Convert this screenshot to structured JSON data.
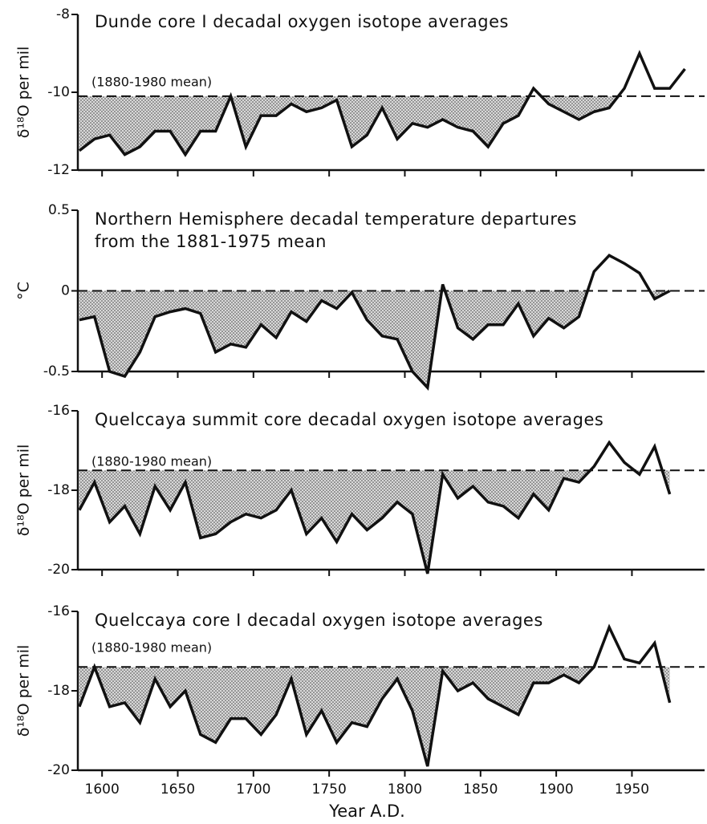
{
  "chart_data": [
    {
      "type": "line",
      "title": "Dunde core I decadal oxygen isotope averages",
      "ylabel": "δ¹⁸O per mil",
      "ylim": [
        -12,
        -8
      ],
      "yticks": [
        -12,
        -10,
        -8
      ],
      "xlim": [
        1584,
        1998
      ],
      "mean": -10.1,
      "mean_label": "(1880-1980 mean)",
      "x": [
        1585,
        1595,
        1605,
        1615,
        1625,
        1635,
        1645,
        1655,
        1665,
        1675,
        1685,
        1695,
        1705,
        1715,
        1725,
        1735,
        1745,
        1755,
        1765,
        1775,
        1785,
        1795,
        1805,
        1815,
        1825,
        1835,
        1845,
        1855,
        1865,
        1875,
        1885,
        1895,
        1905,
        1915,
        1925,
        1935,
        1945,
        1955,
        1965,
        1975,
        1985
      ],
      "values": [
        -11.5,
        -11.2,
        -11.1,
        -11.6,
        -11.4,
        -11.0,
        -11.0,
        -11.6,
        -11.0,
        -11.0,
        -10.1,
        -11.4,
        -10.6,
        -10.6,
        -10.3,
        -10.5,
        -10.4,
        -10.2,
        -11.4,
        -11.1,
        -10.4,
        -11.2,
        -10.8,
        -10.9,
        -10.7,
        -10.9,
        -11.0,
        -11.4,
        -10.8,
        -10.6,
        -9.9,
        -10.3,
        -10.5,
        -10.7,
        -10.5,
        -10.4,
        -9.9,
        -9.0,
        -9.9,
        -9.9,
        -9.4
      ],
      "color": "#111111"
    },
    {
      "type": "line",
      "title": "Northern Hemisphere decadal temperature departures",
      "subtitle": "from the 1881-1975 mean",
      "ylabel": "°C",
      "ylim": [
        -0.5,
        0.5
      ],
      "yticks": [
        -0.5,
        0,
        0.5
      ],
      "xlim": [
        1584,
        1998
      ],
      "mean": 0,
      "x": [
        1585,
        1595,
        1605,
        1615,
        1625,
        1635,
        1645,
        1655,
        1665,
        1675,
        1685,
        1695,
        1705,
        1715,
        1725,
        1735,
        1745,
        1755,
        1765,
        1775,
        1785,
        1795,
        1805,
        1815,
        1825,
        1835,
        1845,
        1855,
        1865,
        1875,
        1885,
        1895,
        1905,
        1915,
        1925,
        1935,
        1945,
        1955,
        1965,
        1975
      ],
      "values": [
        -0.18,
        -0.16,
        -0.5,
        -0.53,
        -0.38,
        -0.16,
        -0.13,
        -0.11,
        -0.14,
        -0.38,
        -0.33,
        -0.35,
        -0.21,
        -0.29,
        -0.13,
        -0.19,
        -0.06,
        -0.11,
        -0.01,
        -0.18,
        -0.28,
        -0.3,
        -0.5,
        -0.6,
        0.04,
        -0.23,
        -0.3,
        -0.21,
        -0.21,
        -0.08,
        -0.28,
        -0.17,
        -0.23,
        -0.16,
        0.12,
        0.22,
        0.17,
        0.11,
        -0.05,
        0.0
      ],
      "color": "#111111"
    },
    {
      "type": "line",
      "title": "Quelccaya summit core decadal oxygen isotope averages",
      "ylabel": "δ¹⁸O per mil",
      "ylim": [
        -20,
        -16
      ],
      "yticks": [
        -20,
        -18,
        -16
      ],
      "xlim": [
        1584,
        1998
      ],
      "mean": -17.5,
      "mean_label": "(1880-1980 mean)",
      "x": [
        1585,
        1595,
        1605,
        1615,
        1625,
        1635,
        1645,
        1655,
        1665,
        1675,
        1685,
        1695,
        1705,
        1715,
        1725,
        1735,
        1745,
        1755,
        1765,
        1775,
        1785,
        1795,
        1805,
        1815,
        1825,
        1835,
        1845,
        1855,
        1865,
        1875,
        1885,
        1895,
        1905,
        1915,
        1925,
        1935,
        1945,
        1955,
        1965,
        1975
      ],
      "values": [
        -18.5,
        -17.8,
        -18.8,
        -18.4,
        -19.1,
        -17.9,
        -18.5,
        -17.8,
        -19.2,
        -19.1,
        -18.8,
        -18.6,
        -18.7,
        -18.5,
        -18.0,
        -19.1,
        -18.7,
        -19.3,
        -18.6,
        -19.0,
        -18.7,
        -18.3,
        -18.6,
        -20.1,
        -17.6,
        -18.2,
        -17.9,
        -18.3,
        -18.4,
        -18.7,
        -18.1,
        -18.5,
        -17.7,
        -17.8,
        -17.4,
        -16.8,
        -17.3,
        -17.6,
        -16.9,
        -18.1
      ],
      "color": "#111111"
    },
    {
      "type": "line",
      "title": "Quelccaya core I decadal oxygen isotope averages",
      "ylabel": "δ¹⁸O per mil",
      "xlabel": "Year A.D.",
      "ylim": [
        -20,
        -16
      ],
      "yticks": [
        -20,
        -18,
        -16
      ],
      "xlim": [
        1584,
        1998
      ],
      "xticks": [
        1600,
        1650,
        1700,
        1750,
        1800,
        1850,
        1900,
        1950
      ],
      "mean": -17.4,
      "mean_label": "(1880-1980 mean)",
      "x": [
        1585,
        1595,
        1605,
        1615,
        1625,
        1635,
        1645,
        1655,
        1665,
        1675,
        1685,
        1695,
        1705,
        1715,
        1725,
        1735,
        1745,
        1755,
        1765,
        1775,
        1785,
        1795,
        1805,
        1815,
        1825,
        1835,
        1845,
        1855,
        1865,
        1875,
        1885,
        1895,
        1905,
        1915,
        1925,
        1935,
        1945,
        1955,
        1965,
        1975
      ],
      "values": [
        -18.4,
        -17.4,
        -18.4,
        -18.3,
        -18.8,
        -17.7,
        -18.4,
        -18.0,
        -19.1,
        -19.3,
        -18.7,
        -18.7,
        -19.1,
        -18.6,
        -17.7,
        -19.1,
        -18.5,
        -19.3,
        -18.8,
        -18.9,
        -18.2,
        -17.7,
        -18.5,
        -19.9,
        -17.5,
        -18.0,
        -17.8,
        -18.2,
        -18.4,
        -18.6,
        -17.8,
        -17.8,
        -17.6,
        -17.8,
        -17.4,
        -16.4,
        -17.2,
        -17.3,
        -16.8,
        -18.3
      ],
      "color": "#111111"
    }
  ]
}
